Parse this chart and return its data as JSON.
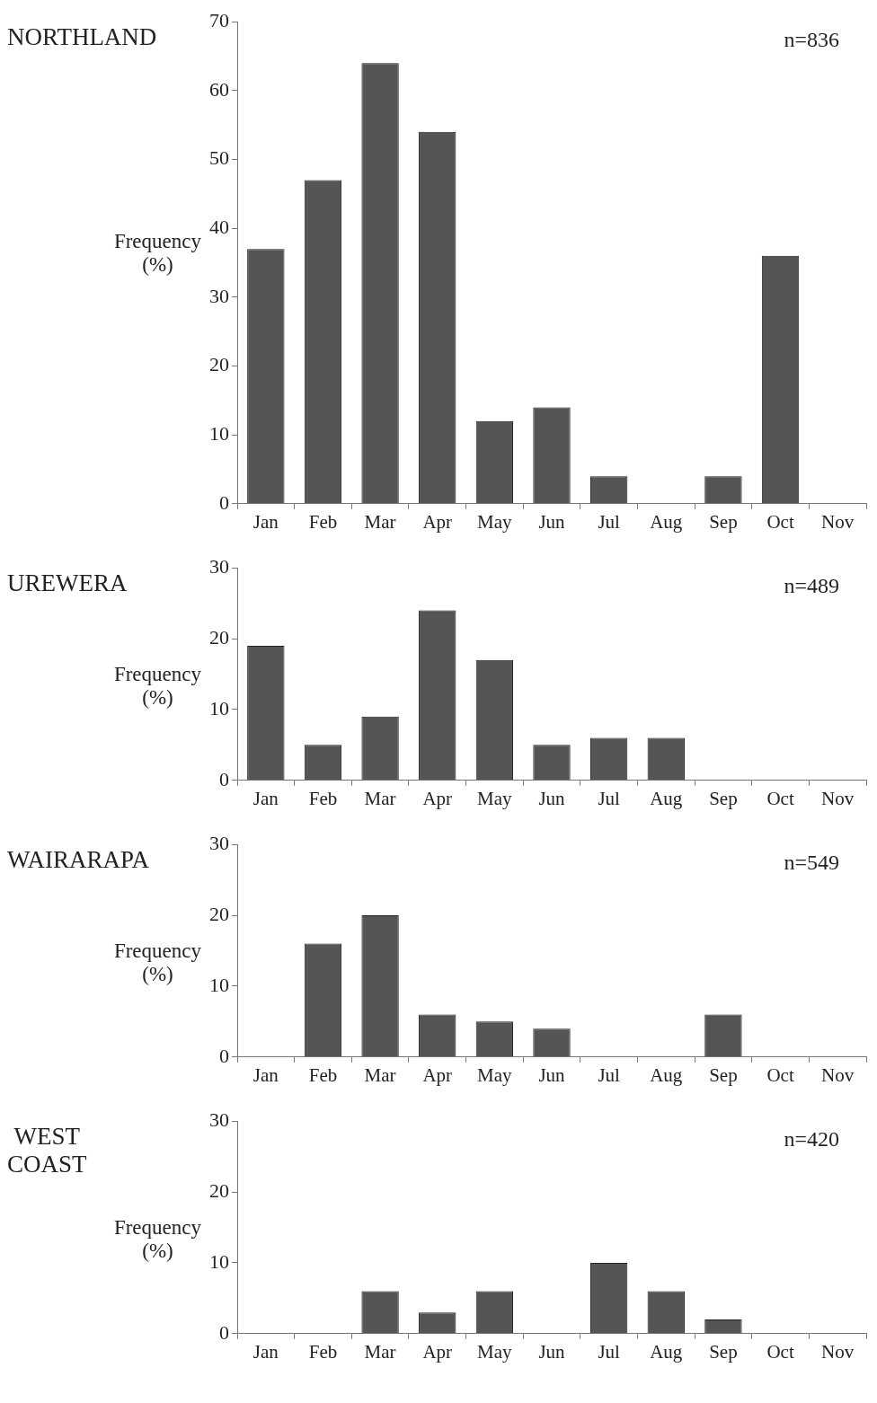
{
  "chart_data": [
    {
      "type": "bar",
      "title": "NORTHLAND",
      "ylabel": "Frequency\n(%)",
      "annotations": [
        "n=836"
      ],
      "categories": [
        "Jan",
        "Feb",
        "Mar",
        "Apr",
        "May",
        "Jun",
        "Jul",
        "Aug",
        "Sep",
        "Oct",
        "Nov"
      ],
      "values": [
        37,
        47,
        64,
        54,
        12,
        14,
        4,
        0,
        4,
        36,
        0
      ],
      "color": "#555555",
      "ylim": [
        0,
        70
      ],
      "yticks": [
        0,
        10,
        20,
        30,
        40,
        50,
        60,
        70
      ]
    },
    {
      "type": "bar",
      "title": "UREWERA",
      "ylabel": "Frequency\n(%)",
      "annotations": [
        "n=489"
      ],
      "categories": [
        "Jan",
        "Feb",
        "Mar",
        "Apr",
        "May",
        "Jun",
        "Jul",
        "Aug",
        "Sep",
        "Oct",
        "Nov"
      ],
      "values": [
        19,
        5,
        9,
        24,
        17,
        5,
        6,
        6,
        0,
        0,
        0
      ],
      "color": "#555555",
      "ylim": [
        0,
        30
      ],
      "yticks": [
        0,
        10,
        20,
        30
      ]
    },
    {
      "type": "bar",
      "title": "WAIRARAPA",
      "ylabel": "Frequency\n(%)",
      "annotations": [
        "n=549"
      ],
      "categories": [
        "Jan",
        "Feb",
        "Mar",
        "Apr",
        "May",
        "Jun",
        "Jul",
        "Aug",
        "Sep",
        "Oct",
        "Nov"
      ],
      "values": [
        0,
        16,
        20,
        6,
        5,
        4,
        0,
        0,
        6,
        0,
        0
      ],
      "color": "#555555",
      "ylim": [
        0,
        30
      ],
      "yticks": [
        0,
        10,
        20,
        30
      ]
    },
    {
      "type": "bar",
      "title": "WEST\nCOAST",
      "ylabel": "Frequency\n(%)",
      "annotations": [
        "n=420"
      ],
      "categories": [
        "Jan",
        "Feb",
        "Mar",
        "Apr",
        "May",
        "Jun",
        "Jul",
        "Aug",
        "Sep",
        "Oct",
        "Nov"
      ],
      "values": [
        0,
        0,
        6,
        3,
        6,
        0,
        10,
        6,
        2,
        0,
        0
      ],
      "color": "#555555",
      "ylim": [
        0,
        30
      ],
      "yticks": [
        0,
        10,
        20,
        30
      ]
    }
  ]
}
